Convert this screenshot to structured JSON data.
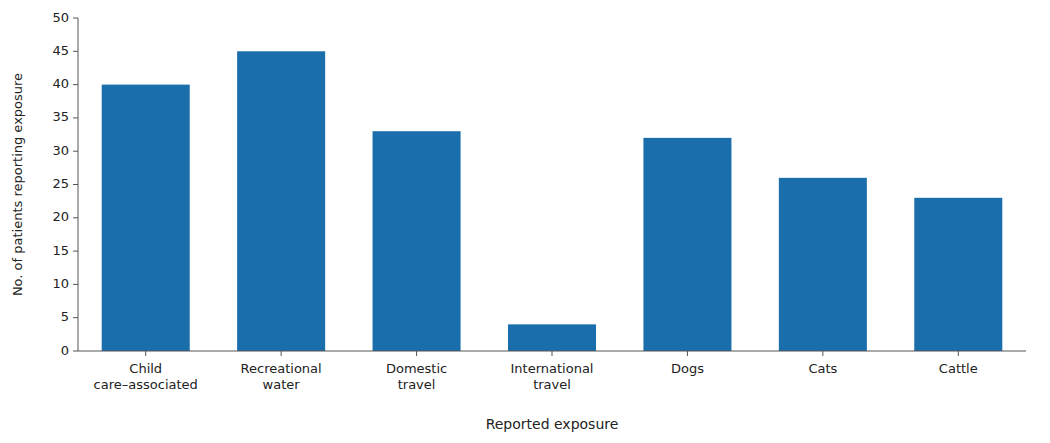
{
  "chart_data": {
    "type": "bar",
    "categories": [
      "Child\ncare–associated",
      "Recreational\nwater",
      "Domestic\ntravel",
      "International\ntravel",
      "Dogs",
      "Cats",
      "Cattle"
    ],
    "values": [
      40,
      45,
      33,
      4,
      32,
      26,
      23
    ],
    "color": "#1a6eab",
    "xlabel": "Reported exposure",
    "ylabel": "No. of patients reporting exposure",
    "ylim": [
      0,
      50
    ],
    "yticks": [
      0,
      5,
      10,
      15,
      20,
      25,
      30,
      35,
      40,
      45,
      50
    ],
    "grid": false
  }
}
